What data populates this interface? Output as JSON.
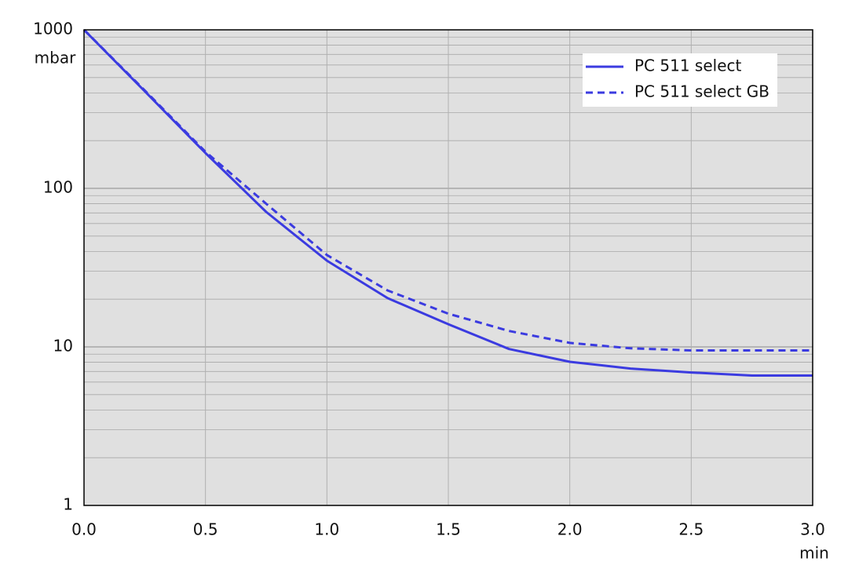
{
  "chart_data": {
    "type": "line",
    "y_unit": "mbar",
    "x_unit": "min",
    "log_y": true,
    "grid": true,
    "minor_grid": true,
    "legend_position": "upper right",
    "xlim": [
      0,
      3
    ],
    "ylim": [
      1,
      1000
    ],
    "xticks": [
      {
        "value": 0,
        "label": "0.0"
      },
      0.5,
      {
        "value": 1,
        "label": "1.0"
      },
      1.5,
      {
        "value": 2,
        "label": "2.0"
      },
      2.5,
      {
        "value": 3,
        "label": "3.0"
      }
    ],
    "yticks": [
      1,
      10,
      100,
      1000
    ],
    "x": [
      0,
      0.25,
      0.5,
      0.75,
      1,
      1.25,
      1.5,
      1.75,
      2,
      2.25,
      2.5,
      2.75,
      3
    ],
    "series": [
      {
        "name": "PC 511 select",
        "color": "#3b3be0",
        "dash": false,
        "values": [
          1000,
          410,
          167,
          71,
          35,
          20.3,
          13.9,
          9.7,
          8.05,
          7.3,
          6.9,
          6.6,
          6.6
        ]
      },
      {
        "name": "PC 511 select GB",
        "color": "#3b3be0",
        "dash": true,
        "values": [
          1000,
          415,
          170,
          80,
          38,
          22.7,
          16.2,
          12.6,
          10.6,
          9.8,
          9.5,
          9.5,
          9.5
        ]
      }
    ]
  }
}
